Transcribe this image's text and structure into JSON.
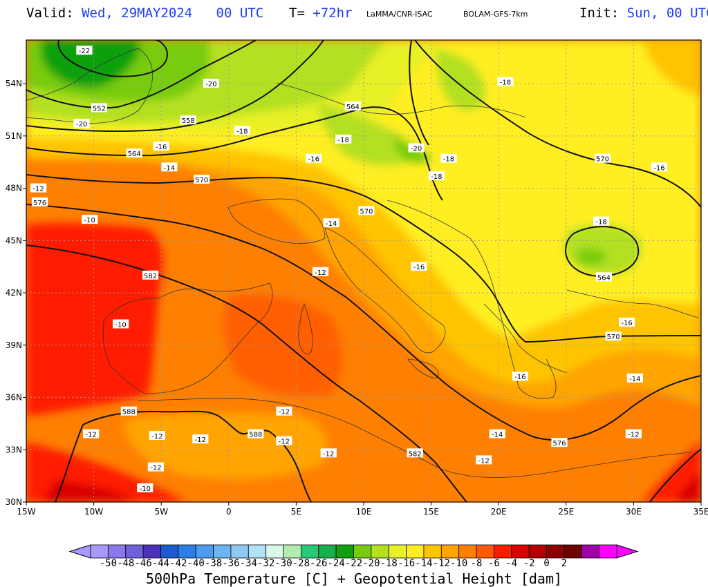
{
  "header": {
    "valid_label": "Valid:",
    "valid_value": "Wed, 29MAY2024   00 UTC",
    "lead_label": "T=",
    "lead_value": "+72hr",
    "source": "LaMMA/CNR-ISAC",
    "model": "BOLAM-GFS-7km",
    "init_label": "Init:",
    "init_value": "Sun, 00 UTC"
  },
  "map": {
    "lon_ticks": [
      "15W",
      "10W",
      "5W",
      "0",
      "5E",
      "10E",
      "15E",
      "20E",
      "25E",
      "30E",
      "35E"
    ],
    "lat_ticks": [
      "54N",
      "51N",
      "48N",
      "45N",
      "42N",
      "39N",
      "36N",
      "33N",
      "30N"
    ],
    "gridlines": true,
    "height_contours": [
      {
        "label": "552",
        "lon": -9.6,
        "lat": 52.6
      },
      {
        "label": "558",
        "lon": -3.0,
        "lat": 51.9
      },
      {
        "label": "564",
        "lon": -7.0,
        "lat": 50.0
      },
      {
        "label": "564",
        "lon": 9.2,
        "lat": 52.7
      },
      {
        "label": "570",
        "lon": -2.0,
        "lat": 48.5
      },
      {
        "label": "570",
        "lon": 10.2,
        "lat": 46.7
      },
      {
        "label": "570",
        "lon": 27.7,
        "lat": 49.7
      },
      {
        "label": "576",
        "lon": -14.0,
        "lat": 47.2
      },
      {
        "label": "582",
        "lon": -5.8,
        "lat": 43.0
      },
      {
        "label": "564",
        "lon": 27.8,
        "lat": 42.9
      },
      {
        "label": "570",
        "lon": 28.5,
        "lat": 39.5
      },
      {
        "label": "576",
        "lon": 24.5,
        "lat": 33.4
      },
      {
        "label": "588",
        "lon": -7.4,
        "lat": 35.2
      },
      {
        "label": "588",
        "lon": 2.0,
        "lat": 33.9
      },
      {
        "label": "582",
        "lon": 13.8,
        "lat": 32.8
      }
    ],
    "temp_labels": [
      {
        "label": "-22",
        "lon": -10.7,
        "lat": 55.9
      },
      {
        "label": "-20",
        "lon": -1.3,
        "lat": 54.0
      },
      {
        "label": "-20",
        "lon": -10.9,
        "lat": 51.7
      },
      {
        "label": "-18",
        "lon": 1.0,
        "lat": 51.3
      },
      {
        "label": "-16",
        "lon": -5.0,
        "lat": 50.4
      },
      {
        "label": "-14",
        "lon": -4.4,
        "lat": 49.2
      },
      {
        "label": "-12",
        "lon": -14.1,
        "lat": 48.0
      },
      {
        "label": "-10",
        "lon": -10.3,
        "lat": 46.2
      },
      {
        "label": "-18",
        "lon": 8.5,
        "lat": 50.8
      },
      {
        "label": "-16",
        "lon": 6.3,
        "lat": 49.7
      },
      {
        "label": "-20",
        "lon": 13.9,
        "lat": 50.3
      },
      {
        "label": "-18",
        "lon": 16.3,
        "lat": 49.7
      },
      {
        "label": "-18",
        "lon": 15.4,
        "lat": 48.7
      },
      {
        "label": "-18",
        "lon": 20.5,
        "lat": 54.1
      },
      {
        "label": "-16",
        "lon": 31.9,
        "lat": 49.2
      },
      {
        "label": "-18",
        "lon": 27.6,
        "lat": 46.1
      },
      {
        "label": "-14",
        "lon": 7.6,
        "lat": 46.0
      },
      {
        "label": "-12",
        "lon": 6.8,
        "lat": 43.2
      },
      {
        "label": "-16",
        "lon": 14.1,
        "lat": 43.5
      },
      {
        "label": "-16",
        "lon": 29.5,
        "lat": 40.3
      },
      {
        "label": "-10",
        "lon": -8.0,
        "lat": 40.2
      },
      {
        "label": "-16",
        "lon": 21.6,
        "lat": 37.2
      },
      {
        "label": "-14",
        "lon": 30.1,
        "lat": 37.1
      },
      {
        "label": "-12",
        "lon": 4.1,
        "lat": 35.2
      },
      {
        "label": "-12",
        "lon": -10.2,
        "lat": 33.9
      },
      {
        "label": "-12",
        "lon": -5.3,
        "lat": 33.8
      },
      {
        "label": "-12",
        "lon": -2.1,
        "lat": 33.6
      },
      {
        "label": "-12",
        "lon": 4.1,
        "lat": 33.5
      },
      {
        "label": "-12",
        "lon": 7.4,
        "lat": 32.8
      },
      {
        "label": "-14",
        "lon": 19.9,
        "lat": 33.9
      },
      {
        "label": "-12",
        "lon": 30.0,
        "lat": 33.9
      },
      {
        "label": "-12",
        "lon": 18.9,
        "lat": 32.4
      },
      {
        "label": "-12",
        "lon": -5.4,
        "lat": 32.0
      },
      {
        "label": "-10",
        "lon": -6.2,
        "lat": 30.8
      }
    ]
  },
  "colorbar": {
    "ticks": [
      "-50",
      "-48",
      "-46",
      "-44",
      "-42",
      "-40",
      "-38",
      "-36",
      "-34",
      "-32",
      "-30",
      "-28",
      "-26",
      "-24",
      "-22",
      "-20",
      "-18",
      "-16",
      "-14",
      "-12",
      "-10",
      "-8",
      "-6",
      "-4",
      "-2",
      "0",
      "2"
    ],
    "colors": [
      "#a898f8",
      "#8c78ec",
      "#7060dc",
      "#4b32b8",
      "#1c5ad0",
      "#2a7ee6",
      "#4c9cf0",
      "#6cb4f4",
      "#8ccaf4",
      "#b0e2f8",
      "#dcf6ea",
      "#b4ecb0",
      "#28c878",
      "#18b04a",
      "#10a010",
      "#78cc10",
      "#b4e020",
      "#e8f028",
      "#ffee24",
      "#ffc400",
      "#ffa400",
      "#ff8000",
      "#ff5a00",
      "#ff1a00",
      "#d80000",
      "#b40000",
      "#8c0000",
      "#6a0000",
      "#a000a8",
      "#ff00ff"
    ],
    "title": "500hPa Temperature [C] + Geopotential Height [dam]"
  }
}
